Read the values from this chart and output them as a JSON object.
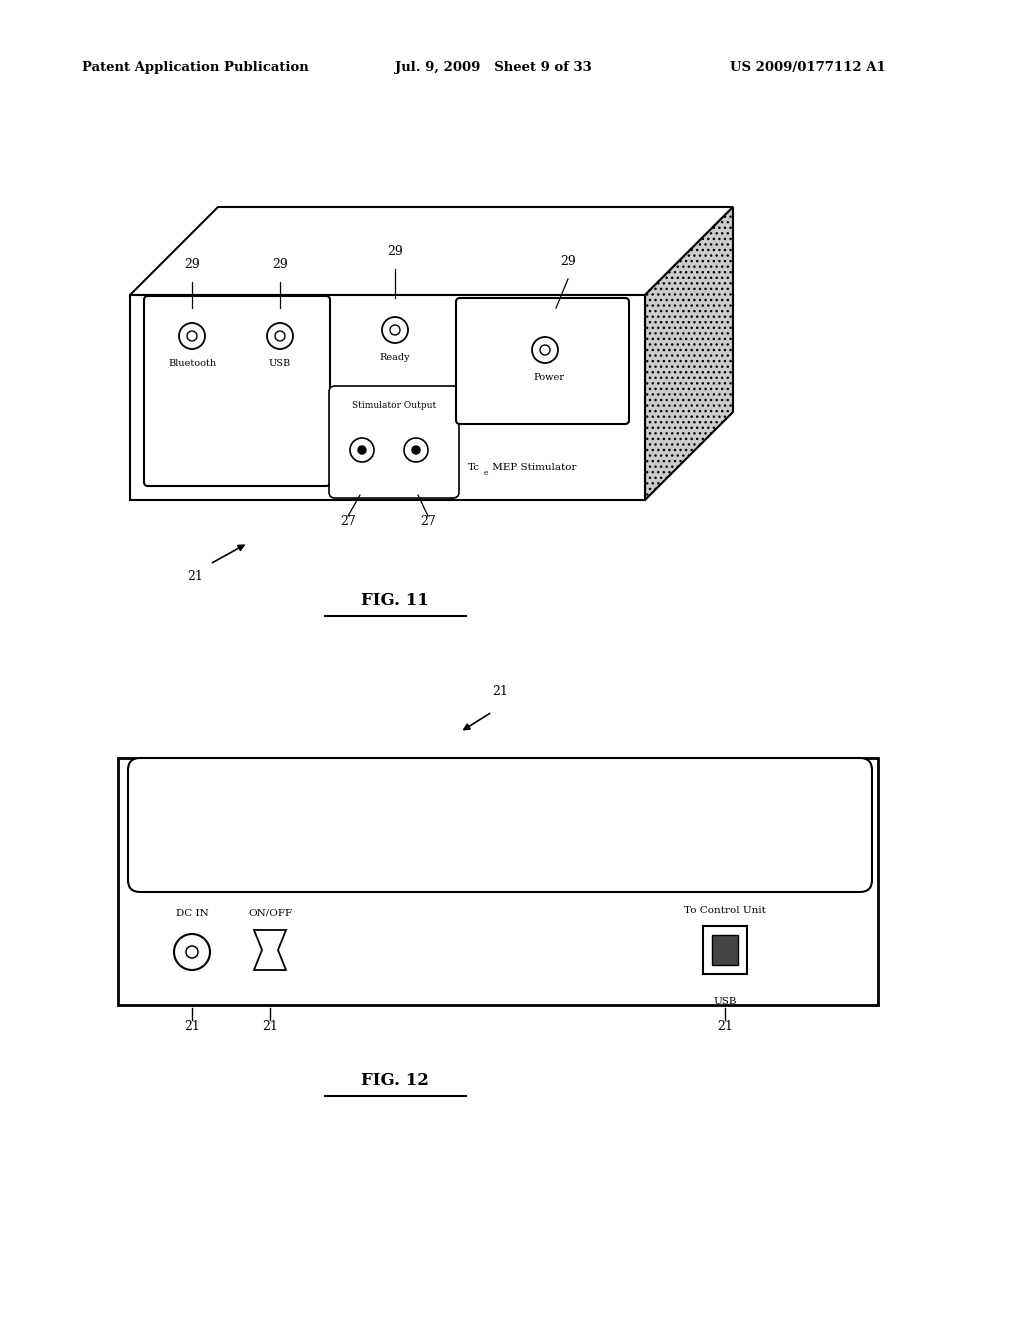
{
  "bg_color": "#ffffff",
  "header_left": "Patent Application Publication",
  "header_mid": "Jul. 9, 2009   Sheet 9 of 33",
  "header_right": "US 2009/0177112 A1",
  "fig11_label": "FIG. 11",
  "fig12_label": "FIG. 12"
}
